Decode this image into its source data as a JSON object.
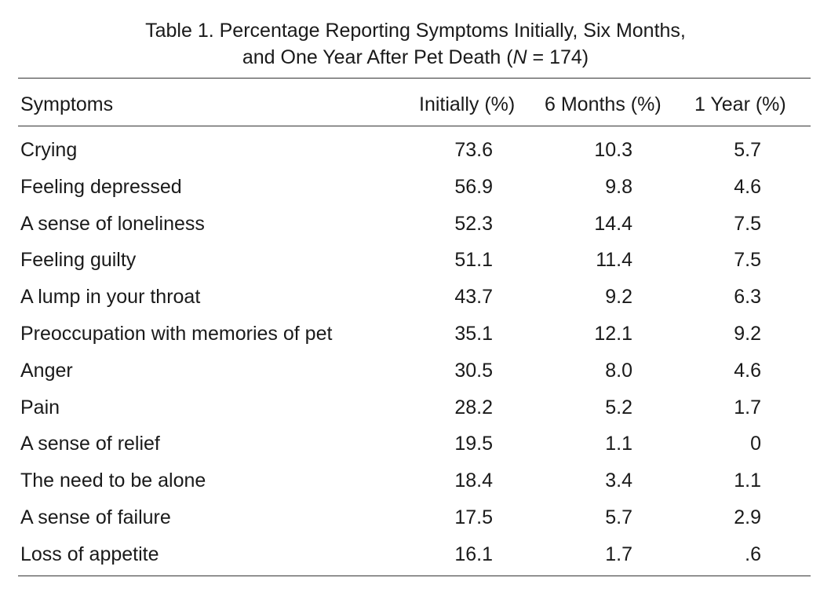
{
  "caption": {
    "line1": "Table 1.  Percentage Reporting Symptoms Initially, Six Months,",
    "line2_prefix": "and One Year After Pet Death (",
    "line2_n": "N",
    "line2_suffix": " = 174)"
  },
  "headers": {
    "symptoms": "Symptoms",
    "initially": "Initially (%)",
    "six_months": "6 Months (%)",
    "one_year": "1 Year (%)"
  },
  "rows": [
    {
      "symptom": "Crying",
      "initially": "73.6",
      "six_months": "10.3",
      "one_year": "5.7"
    },
    {
      "symptom": "Feeling depressed",
      "initially": "56.9",
      "six_months": "9.8",
      "one_year": "4.6"
    },
    {
      "symptom": "A sense of loneliness",
      "initially": "52.3",
      "six_months": "14.4",
      "one_year": "7.5"
    },
    {
      "symptom": "Feeling guilty",
      "initially": "51.1",
      "six_months": "11.4",
      "one_year": "7.5"
    },
    {
      "symptom": "A lump in your throat",
      "initially": "43.7",
      "six_months": "9.2",
      "one_year": "6.3"
    },
    {
      "symptom": "Preoccupation with memories of pet",
      "initially": "35.1",
      "six_months": "12.1",
      "one_year": "9.2"
    },
    {
      "symptom": "Anger",
      "initially": "30.5",
      "six_months": "8.0",
      "one_year": "4.6"
    },
    {
      "symptom": "Pain",
      "initially": "28.2",
      "six_months": "5.2",
      "one_year": "1.7"
    },
    {
      "symptom": "A sense of relief",
      "initially": "19.5",
      "six_months": "1.1",
      "one_year": "0"
    },
    {
      "symptom": "The need to be alone",
      "initially": "18.4",
      "six_months": "3.4",
      "one_year": "1.1"
    },
    {
      "symptom": "A sense of failure",
      "initially": "17.5",
      "six_months": "5.7",
      "one_year": "2.9"
    },
    {
      "symptom": "Loss of appetite",
      "initially": "16.1",
      "six_months": "1.7",
      "one_year": ".6"
    }
  ]
}
